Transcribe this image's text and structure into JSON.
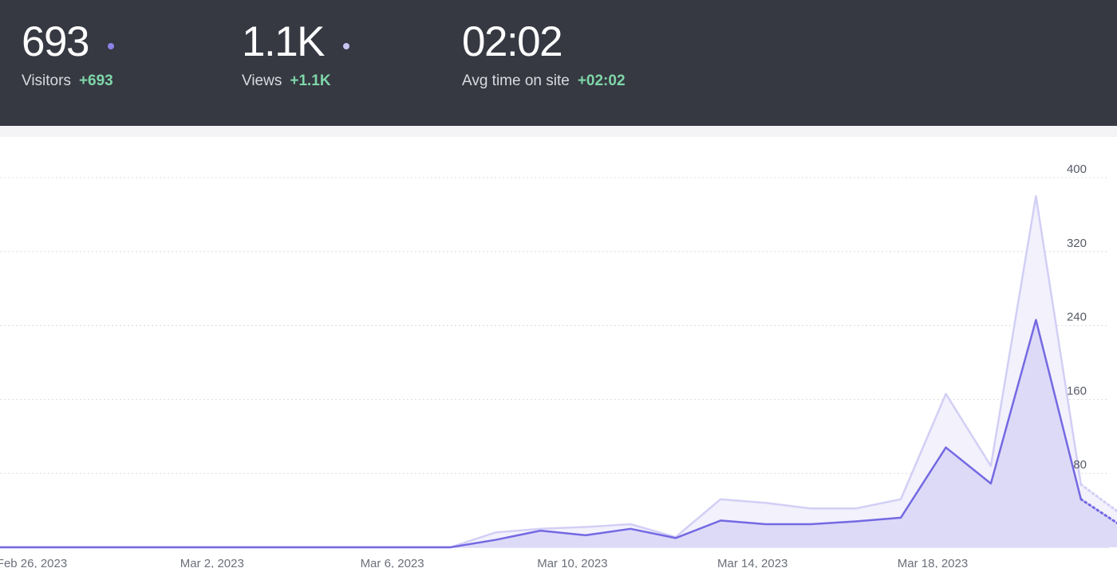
{
  "metrics": [
    {
      "value": "693",
      "label": "Visitors",
      "delta": "+693",
      "dot_color": "#8b83e6"
    },
    {
      "value": "1.1K",
      "label": "Views",
      "delta": "+1.1K",
      "dot_color": "#c9c6f2"
    },
    {
      "value": "02:02",
      "label": "Avg time on site",
      "delta": "+02:02"
    }
  ],
  "colors": {
    "header_bg": "#363942",
    "delta_green": "#7fd6a8",
    "visitors_line": "#7469e2",
    "views_line": "#d2cff5",
    "visitors_fill": "#dbd8f8",
    "views_fill": "#f1f0fc"
  },
  "chart_data": {
    "type": "area",
    "x": [
      "Feb 26, 2023",
      "Feb 27, 2023",
      "Feb 28, 2023",
      "Mar 1, 2023",
      "Mar 2, 2023",
      "Mar 3, 2023",
      "Mar 4, 2023",
      "Mar 5, 2023",
      "Mar 6, 2023",
      "Mar 7, 2023",
      "Mar 8, 2023",
      "Mar 9, 2023",
      "Mar 10, 2023",
      "Mar 11, 2023",
      "Mar 12, 2023",
      "Mar 13, 2023",
      "Mar 14, 2023",
      "Mar 15, 2023",
      "Mar 16, 2023",
      "Mar 17, 2023",
      "Mar 18, 2023",
      "Mar 19, 2023",
      "Mar 20, 2023",
      "Mar 21, 2023",
      "Mar 22, 2023",
      "Mar 23, 2023"
    ],
    "tick_labels": [
      "Feb 26, 2023",
      "Mar 2, 2023",
      "Mar 6, 2023",
      "Mar 10, 2023",
      "Mar 14, 2023",
      "Mar 18, 2023"
    ],
    "series": [
      {
        "name": "Views",
        "values": [
          0,
          0,
          0,
          0,
          0,
          0,
          0,
          0,
          0,
          0,
          0,
          16,
          20,
          22,
          25,
          11,
          52,
          48,
          42,
          42,
          52,
          166,
          88,
          380,
          68,
          32
        ]
      },
      {
        "name": "Visitors",
        "values": [
          0,
          0,
          0,
          0,
          0,
          0,
          0,
          0,
          0,
          0,
          0,
          8,
          18,
          13,
          20,
          10,
          29,
          25,
          25,
          28,
          32,
          108,
          69,
          246,
          52,
          20
        ]
      }
    ],
    "dotted_last_segment": true,
    "ylim": [
      0,
      400
    ],
    "yticks": [
      80,
      160,
      240,
      320,
      400
    ],
    "y_axis_position": "right",
    "grid": true
  }
}
